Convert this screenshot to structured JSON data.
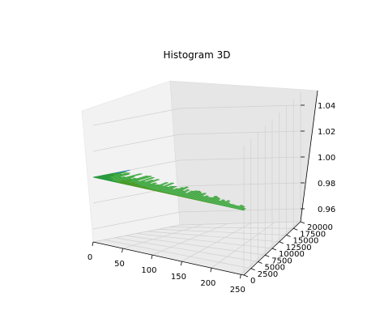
{
  "chart_data": {
    "type": "3d-histogram",
    "title": "Histogram 3D",
    "x_ticks": [
      "0",
      "50",
      "100",
      "150",
      "200",
      "250"
    ],
    "y_ticks": [
      "0",
      "2500",
      "5000",
      "7500",
      "10000",
      "12500",
      "15000",
      "17500",
      "20000"
    ],
    "z_ticks": [
      "0.96",
      "0.98",
      "1.00",
      "1.02",
      "1.04"
    ],
    "xlim": [
      0,
      255
    ],
    "ylim": [
      0,
      20000
    ],
    "zlim": [
      0.95,
      1.05
    ],
    "grid": true,
    "series": [
      {
        "color": "#1f77b4",
        "x_range": [
          0,
          60
        ],
        "y_range": [
          0,
          9000
        ],
        "z": 1.0
      },
      {
        "color": "#ff7f0e",
        "x_range": [
          40,
          200
        ],
        "y_range": [
          0,
          3500
        ],
        "z": 1.0
      },
      {
        "color": "#2ca02c",
        "x_range": [
          0,
          255
        ],
        "y_range": [
          0,
          8000
        ],
        "z": 1.0
      }
    ]
  }
}
